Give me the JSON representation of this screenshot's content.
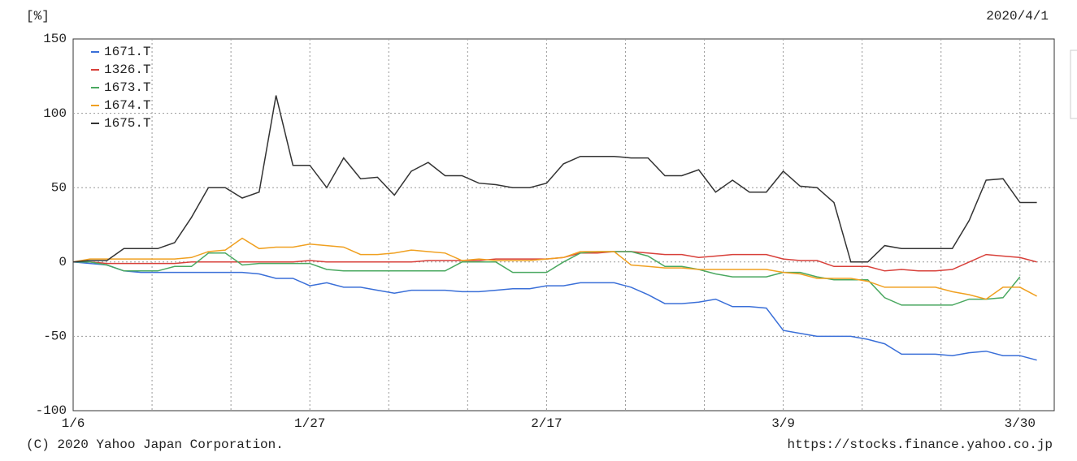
{
  "chart_data": {
    "type": "line",
    "y_unit_label": "[%]",
    "date_label": "2020/4/1",
    "copyright": "(C) 2020 Yahoo Japan Corporation.",
    "source_url": "https://stocks.finance.yahoo.co.jp",
    "categories": [
      "1/6",
      null,
      null,
      null,
      null,
      null,
      null,
      null,
      null,
      null,
      null,
      null,
      null,
      null,
      "1/27",
      null,
      null,
      null,
      null,
      null,
      null,
      null,
      null,
      null,
      null,
      null,
      null,
      null,
      "2/17",
      null,
      null,
      null,
      null,
      null,
      null,
      null,
      null,
      null,
      null,
      null,
      null,
      null,
      "3/9",
      null,
      null,
      null,
      null,
      null,
      null,
      null,
      null,
      null,
      null,
      null,
      null,
      null,
      "3/30",
      null
    ],
    "ylim": [
      -100,
      150
    ],
    "yticks": [
      -100,
      -50,
      0,
      50,
      100,
      150
    ],
    "grid": true,
    "legend": "top-left",
    "series": [
      {
        "name": "1671.T",
        "color": "#3a6fd8",
        "values": [
          0,
          -1,
          -2,
          -6,
          -7,
          -7,
          -7,
          -7,
          -7,
          -7,
          -7,
          -8,
          -11,
          -11,
          -16,
          -14,
          -17,
          -17,
          -19,
          -21,
          -19,
          -19,
          -19,
          -20,
          -20,
          -19,
          -18,
          -18,
          -16,
          -16,
          -14,
          -14,
          -14,
          -17,
          -22,
          -28,
          -28,
          -27,
          -25,
          -30,
          -30,
          -31,
          -46,
          -48,
          -50,
          -50,
          -50,
          -52,
          -55,
          -62,
          -62,
          -62,
          -63,
          -61,
          -60,
          -63,
          -63,
          -66
        ]
      },
      {
        "name": "1326.T",
        "color": "#d8403a",
        "values": [
          0,
          0,
          -1,
          -1,
          -1,
          -1,
          -1,
          0,
          0,
          0,
          0,
          0,
          0,
          0,
          1,
          0,
          0,
          0,
          0,
          0,
          0,
          1,
          1,
          1,
          1,
          2,
          2,
          2,
          2,
          3,
          6,
          6,
          7,
          7,
          6,
          5,
          5,
          3,
          4,
          5,
          5,
          5,
          2,
          1,
          1,
          -3,
          -3,
          -3,
          -6,
          -5,
          -6,
          -6,
          -5,
          0,
          5,
          4,
          3,
          0
        ]
      },
      {
        "name": "1673.T",
        "color": "#4aa860",
        "values": [
          0,
          0,
          -2,
          -6,
          -6,
          -6,
          -3,
          -3,
          6,
          6,
          -2,
          -1,
          -1,
          -1,
          -1,
          -5,
          -6,
          -6,
          -6,
          -6,
          -6,
          -6,
          -6,
          0,
          0,
          0,
          -7,
          -7,
          -7,
          0,
          6,
          7,
          7,
          7,
          4,
          -3,
          -3,
          -5,
          -8,
          -10,
          -10,
          -10,
          -7,
          -7,
          -10,
          -12,
          -12,
          -12,
          -24,
          -29,
          -29,
          -29,
          -29,
          -25,
          -25,
          -24,
          -10,
          null
        ]
      },
      {
        "name": "1674.T",
        "color": "#f0a020",
        "values": [
          0,
          2,
          2,
          2,
          2,
          2,
          2,
          3,
          7,
          8,
          16,
          9,
          10,
          10,
          12,
          11,
          10,
          5,
          5,
          6,
          8,
          7,
          6,
          1,
          2,
          1,
          1,
          1,
          2,
          3,
          7,
          7,
          7,
          -2,
          -3,
          -4,
          -4,
          -5,
          -5,
          -5,
          -5,
          -5,
          -7,
          -8,
          -11,
          -11,
          -11,
          -13,
          -17,
          -17,
          -17,
          -17,
          -20,
          -22,
          -25,
          -17,
          -17,
          -23
        ]
      },
      {
        "name": "1675.T",
        "color": "#333333",
        "values": [
          0,
          1,
          1,
          9,
          9,
          9,
          13,
          30,
          50,
          50,
          43,
          47,
          112,
          65,
          65,
          50,
          70,
          56,
          57,
          45,
          61,
          67,
          58,
          58,
          53,
          52,
          50,
          50,
          53,
          66,
          71,
          71,
          71,
          70,
          70,
          58,
          58,
          62,
          47,
          55,
          47,
          47,
          61,
          51,
          50,
          40,
          0,
          0,
          11,
          9,
          9,
          9,
          9,
          28,
          55,
          56,
          40,
          40
        ]
      }
    ]
  }
}
